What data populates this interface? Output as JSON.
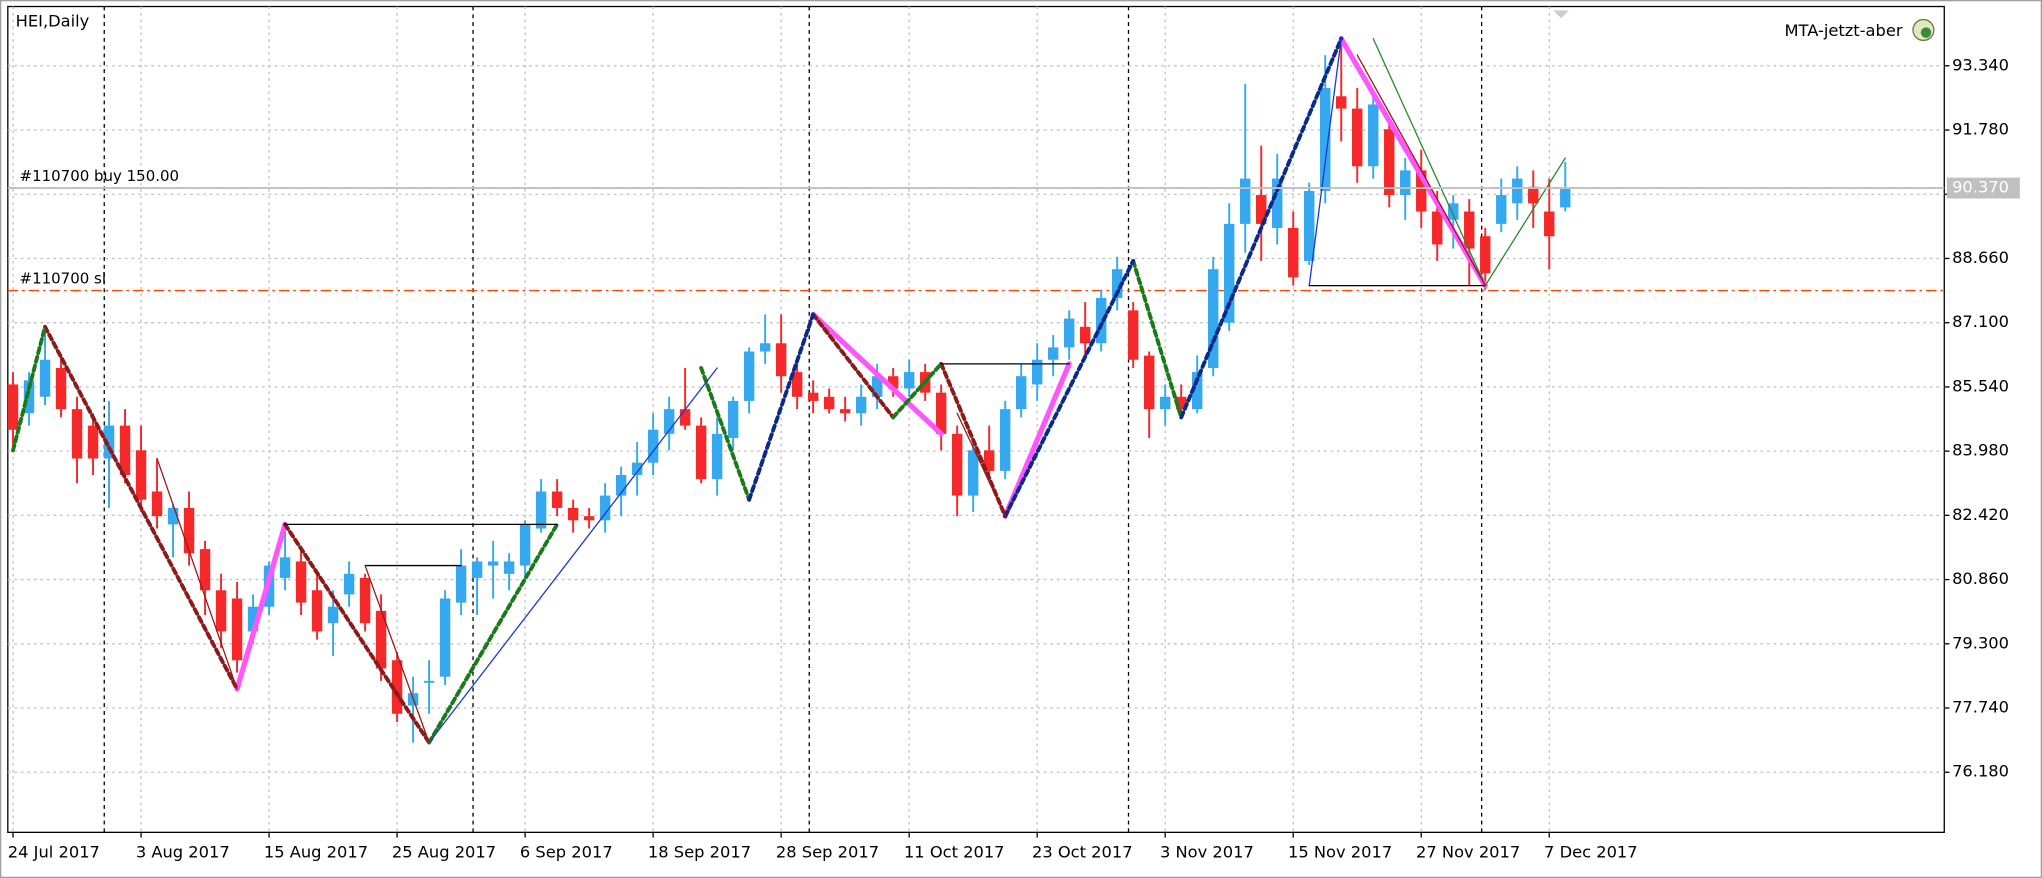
{
  "chart_data": {
    "type": "candlestick",
    "title": "HEI,Daily",
    "indicator": "MTA-jetzt-aber",
    "up_color": "#36a8f0",
    "down_color": "#f5282a",
    "categories": [
      "24 Jul 2017",
      null,
      null,
      null,
      null,
      null,
      null,
      null,
      "3 Aug 2017",
      null,
      null,
      null,
      null,
      null,
      null,
      null,
      "15 Aug 2017",
      null,
      null,
      null,
      null,
      null,
      null,
      null,
      "25 Aug 2017",
      null,
      null,
      null,
      null,
      null,
      null,
      null,
      "6 Sep 2017",
      null,
      null,
      null,
      null,
      null,
      null,
      null,
      "18 Sep 2017",
      null,
      null,
      null,
      null,
      null,
      null,
      null,
      "28 Sep 2017",
      null,
      null,
      null,
      null,
      null,
      null,
      null,
      "11 Oct 2017",
      null,
      null,
      null,
      null,
      null,
      null,
      null,
      "23 Oct 2017",
      null,
      null,
      null,
      null,
      null,
      null,
      null,
      "3 Nov 2017",
      null,
      null,
      null,
      null,
      null,
      null,
      null,
      "15 Nov 2017",
      null,
      null,
      null,
      null,
      null,
      null,
      null,
      "27 Nov 2017",
      null,
      null,
      null,
      null,
      null,
      null,
      null,
      "7 Dec 2017",
      null
    ],
    "ohlc": [
      [
        85.6,
        85.9,
        84.0,
        84.5
      ],
      [
        84.9,
        85.9,
        84.6,
        85.7
      ],
      [
        85.3,
        87.0,
        85.1,
        86.2
      ],
      [
        86.0,
        86.3,
        84.8,
        85.0
      ],
      [
        85.0,
        85.3,
        83.2,
        83.8
      ],
      [
        84.6,
        84.9,
        83.4,
        83.8
      ],
      [
        83.8,
        85.2,
        82.6,
        84.6
      ],
      [
        84.6,
        85.0,
        83.2,
        83.4
      ],
      [
        84.0,
        84.6,
        82.5,
        82.8
      ],
      [
        83.0,
        83.8,
        82.1,
        82.4
      ],
      [
        82.2,
        82.7,
        81.4,
        82.6
      ],
      [
        82.6,
        83.0,
        81.2,
        81.5
      ],
      [
        81.6,
        81.8,
        80.0,
        80.6
      ],
      [
        80.6,
        81.0,
        79.2,
        79.6
      ],
      [
        80.4,
        80.8,
        78.6,
        78.9
      ],
      [
        79.6,
        80.5,
        79.3,
        80.2
      ],
      [
        80.2,
        81.3,
        80.0,
        81.2
      ],
      [
        80.9,
        82.2,
        80.6,
        81.4
      ],
      [
        81.3,
        81.6,
        80.0,
        80.3
      ],
      [
        80.6,
        81.0,
        79.4,
        79.6
      ],
      [
        79.8,
        80.6,
        79.0,
        80.2
      ],
      [
        80.5,
        81.3,
        80.2,
        81.0
      ],
      [
        80.9,
        81.0,
        79.6,
        79.8
      ],
      [
        80.1,
        80.5,
        78.4,
        78.7
      ],
      [
        78.9,
        79.1,
        77.4,
        77.6
      ],
      [
        77.8,
        78.5,
        76.9,
        78.1
      ],
      [
        78.4,
        78.9,
        77.6,
        78.4
      ],
      [
        78.5,
        80.6,
        78.3,
        80.4
      ],
      [
        80.3,
        81.6,
        80.0,
        81.2
      ],
      [
        80.9,
        81.4,
        80.0,
        81.3
      ],
      [
        81.2,
        81.8,
        80.4,
        81.3
      ],
      [
        81.0,
        81.5,
        80.6,
        81.3
      ],
      [
        81.2,
        82.3,
        80.9,
        82.2
      ],
      [
        82.1,
        83.3,
        82.0,
        83.0
      ],
      [
        83.0,
        83.3,
        82.4,
        82.6
      ],
      [
        82.6,
        82.8,
        82.0,
        82.3
      ],
      [
        82.4,
        82.6,
        82.1,
        82.3
      ],
      [
        82.3,
        83.2,
        82.0,
        82.9
      ],
      [
        82.9,
        83.6,
        82.4,
        83.4
      ],
      [
        83.4,
        84.2,
        82.9,
        83.7
      ],
      [
        83.7,
        84.9,
        83.4,
        84.5
      ],
      [
        84.4,
        85.3,
        84.0,
        85.0
      ],
      [
        85.0,
        86.0,
        84.5,
        84.6
      ],
      [
        84.6,
        84.8,
        83.2,
        83.3
      ],
      [
        83.3,
        84.8,
        82.9,
        84.4
      ],
      [
        84.3,
        85.3,
        84.0,
        85.2
      ],
      [
        85.2,
        86.5,
        84.9,
        86.4
      ],
      [
        86.4,
        87.3,
        86.1,
        86.6
      ],
      [
        86.6,
        87.3,
        85.4,
        85.8
      ],
      [
        85.9,
        86.2,
        85.0,
        85.3
      ],
      [
        85.4,
        85.7,
        84.9,
        85.2
      ],
      [
        85.3,
        85.5,
        84.9,
        85.0
      ],
      [
        85.0,
        85.3,
        84.7,
        84.9
      ],
      [
        84.9,
        85.6,
        84.6,
        85.3
      ],
      [
        85.3,
        86.1,
        85.0,
        85.8
      ],
      [
        85.8,
        86.0,
        85.3,
        85.5
      ],
      [
        85.5,
        86.2,
        85.3,
        85.9
      ],
      [
        85.9,
        86.1,
        85.2,
        85.4
      ],
      [
        85.4,
        85.6,
        84.0,
        84.4
      ],
      [
        84.4,
        84.6,
        82.4,
        82.9
      ],
      [
        82.9,
        84.3,
        82.5,
        84.0
      ],
      [
        84.0,
        84.6,
        83.3,
        83.5
      ],
      [
        83.5,
        85.2,
        83.3,
        85.0
      ],
      [
        85.0,
        86.1,
        84.8,
        85.8
      ],
      [
        85.6,
        86.6,
        85.2,
        86.2
      ],
      [
        86.2,
        86.8,
        85.8,
        86.5
      ],
      [
        86.5,
        87.4,
        86.2,
        87.2
      ],
      [
        87.0,
        87.6,
        86.3,
        86.6
      ],
      [
        86.6,
        87.9,
        86.4,
        87.7
      ],
      [
        87.7,
        88.7,
        87.4,
        88.4
      ],
      [
        87.4,
        87.6,
        86.0,
        86.2
      ],
      [
        86.3,
        86.4,
        84.3,
        85.0
      ],
      [
        85.0,
        85.6,
        84.6,
        85.3
      ],
      [
        85.3,
        85.6,
        84.8,
        85.0
      ],
      [
        85.0,
        86.3,
        84.9,
        85.9
      ],
      [
        86.0,
        88.7,
        85.8,
        88.4
      ],
      [
        87.1,
        90.0,
        86.9,
        89.5
      ],
      [
        89.5,
        92.9,
        88.8,
        90.6
      ],
      [
        90.2,
        91.4,
        88.6,
        89.5
      ],
      [
        89.4,
        91.2,
        89.0,
        90.6
      ],
      [
        89.4,
        89.8,
        88.0,
        88.2
      ],
      [
        88.6,
        90.5,
        88.5,
        90.3
      ],
      [
        90.3,
        93.6,
        90.0,
        92.8
      ],
      [
        92.6,
        94.0,
        91.5,
        92.3
      ],
      [
        92.3,
        92.8,
        90.5,
        90.9
      ],
      [
        90.9,
        92.7,
        90.6,
        92.4
      ],
      [
        91.8,
        92.1,
        89.9,
        90.2
      ],
      [
        90.2,
        91.1,
        89.6,
        90.8
      ],
      [
        90.8,
        91.3,
        89.4,
        89.8
      ],
      [
        89.8,
        90.3,
        88.6,
        89.0
      ],
      [
        89.6,
        90.2,
        88.9,
        90.0
      ],
      [
        89.8,
        90.1,
        88.0,
        88.9
      ],
      [
        89.2,
        89.4,
        87.9,
        88.3
      ],
      [
        89.5,
        90.6,
        89.3,
        90.2
      ],
      [
        90.0,
        90.9,
        89.6,
        90.6
      ],
      [
        90.4,
        90.8,
        89.4,
        90.0
      ],
      [
        89.8,
        90.6,
        88.4,
        89.2
      ],
      [
        89.9,
        91.0,
        89.8,
        90.37
      ]
    ],
    "ylim": [
      74.72,
      94.78
    ],
    "yticks": [
      {
        "value": 93.34,
        "label": "93.340"
      },
      {
        "value": 91.78,
        "label": "91.780"
      },
      {
        "value": 90.22,
        "label": "90.220"
      },
      {
        "value": 88.66,
        "label": "88.660"
      },
      {
        "value": 87.1,
        "label": "87.100"
      },
      {
        "value": 85.54,
        "label": "85.540"
      },
      {
        "value": 83.98,
        "label": "83.980"
      },
      {
        "value": 82.42,
        "label": "82.420"
      },
      {
        "value": 80.86,
        "label": "80.860"
      },
      {
        "value": 79.3,
        "label": "79.300"
      },
      {
        "value": 77.74,
        "label": "77.740"
      },
      {
        "value": 76.18,
        "label": "76.180"
      }
    ],
    "grid": true,
    "current_price": {
      "value": 90.37,
      "label": "90.370"
    },
    "orders": [
      {
        "label": "#110700 buy 150.00",
        "price": 90.37,
        "color": "#008000"
      },
      {
        "label": "#110700 sl",
        "price": 87.88,
        "color": "#ff4500"
      }
    ],
    "overlays": [
      {
        "color": "#ff55ff",
        "width": 4,
        "dash": "",
        "segments": [
          [
            [
              14,
              78.2
            ],
            [
              17,
              82.2
            ]
          ],
          [
            [
              50,
              87.3
            ],
            [
              58,
              84.4
            ]
          ],
          [
            [
              62,
              82.4
            ],
            [
              66,
              86.1
            ]
          ],
          [
            [
              83,
              94.0
            ],
            [
              92,
              88.0
            ]
          ]
        ]
      },
      {
        "color": "#8b1a1a",
        "width": 3,
        "dash": "4 3",
        "segments": [
          [
            [
              2,
              87.0
            ],
            [
              14,
              78.2
            ]
          ],
          [
            [
              17,
              82.2
            ],
            [
              26,
              76.9
            ]
          ],
          [
            [
              50,
              87.3
            ],
            [
              55,
              84.8
            ]
          ],
          [
            [
              58,
              86.1
            ],
            [
              62,
              82.4
            ]
          ]
        ]
      },
      {
        "color": "#1a7a1a",
        "width": 3,
        "dash": "4 3",
        "segments": [
          [
            [
              0,
              84.0
            ],
            [
              2,
              87.0
            ]
          ],
          [
            [
              26,
              76.9
            ],
            [
              34,
              82.2
            ]
          ],
          [
            [
              43,
              86.0
            ],
            [
              46,
              82.8
            ]
          ],
          [
            [
              55,
              84.8
            ],
            [
              58,
              86.1
            ]
          ],
          [
            [
              70,
              88.6
            ],
            [
              73,
              84.8
            ]
          ]
        ]
      },
      {
        "color": "#0a2a8a",
        "width": 3,
        "dash": "4 3",
        "segments": [
          [
            [
              46,
              82.8
            ],
            [
              50,
              87.3
            ]
          ],
          [
            [
              62,
              82.4
            ],
            [
              70,
              88.6
            ]
          ],
          [
            [
              73,
              84.8
            ],
            [
              83,
              94.0
            ]
          ]
        ]
      },
      {
        "color": "#1a3ad0",
        "width": 1,
        "dash": "",
        "segments": [
          [
            [
              26,
              76.9
            ],
            [
              44,
              86.0
            ]
          ],
          [
            [
              81,
              88.0
            ],
            [
              83,
              94.0
            ]
          ]
        ]
      },
      {
        "color": "#000000",
        "width": 1,
        "dash": "",
        "segments": [
          [
            [
              17,
              82.2
            ],
            [
              34,
              82.2
            ]
          ],
          [
            [
              22,
              81.2
            ],
            [
              28,
              81.2
            ]
          ],
          [
            [
              58,
              86.1
            ],
            [
              66,
              86.1
            ]
          ],
          [
            [
              81,
              88.0
            ],
            [
              92,
              88.0
            ]
          ]
        ]
      },
      {
        "color": "#2a8a2a",
        "width": 1,
        "dash": "",
        "segments": [
          [
            [
              85,
              94.0
            ],
            [
              92,
              88.0
            ]
          ],
          [
            [
              92,
              88.0
            ],
            [
              97,
              91.1
            ]
          ]
        ]
      },
      {
        "color": "#9a1a1a",
        "width": 1,
        "dash": "",
        "segments": [
          [
            [
              9,
              83.8
            ],
            [
              14,
              78.2
            ]
          ],
          [
            [
              22,
              81.2
            ],
            [
              26,
              76.9
            ]
          ],
          [
            [
              59,
              84.9
            ],
            [
              62,
              82.4
            ]
          ],
          [
            [
              84,
              93.6
            ],
            [
              92,
              88.0
            ]
          ]
        ]
      }
    ]
  }
}
